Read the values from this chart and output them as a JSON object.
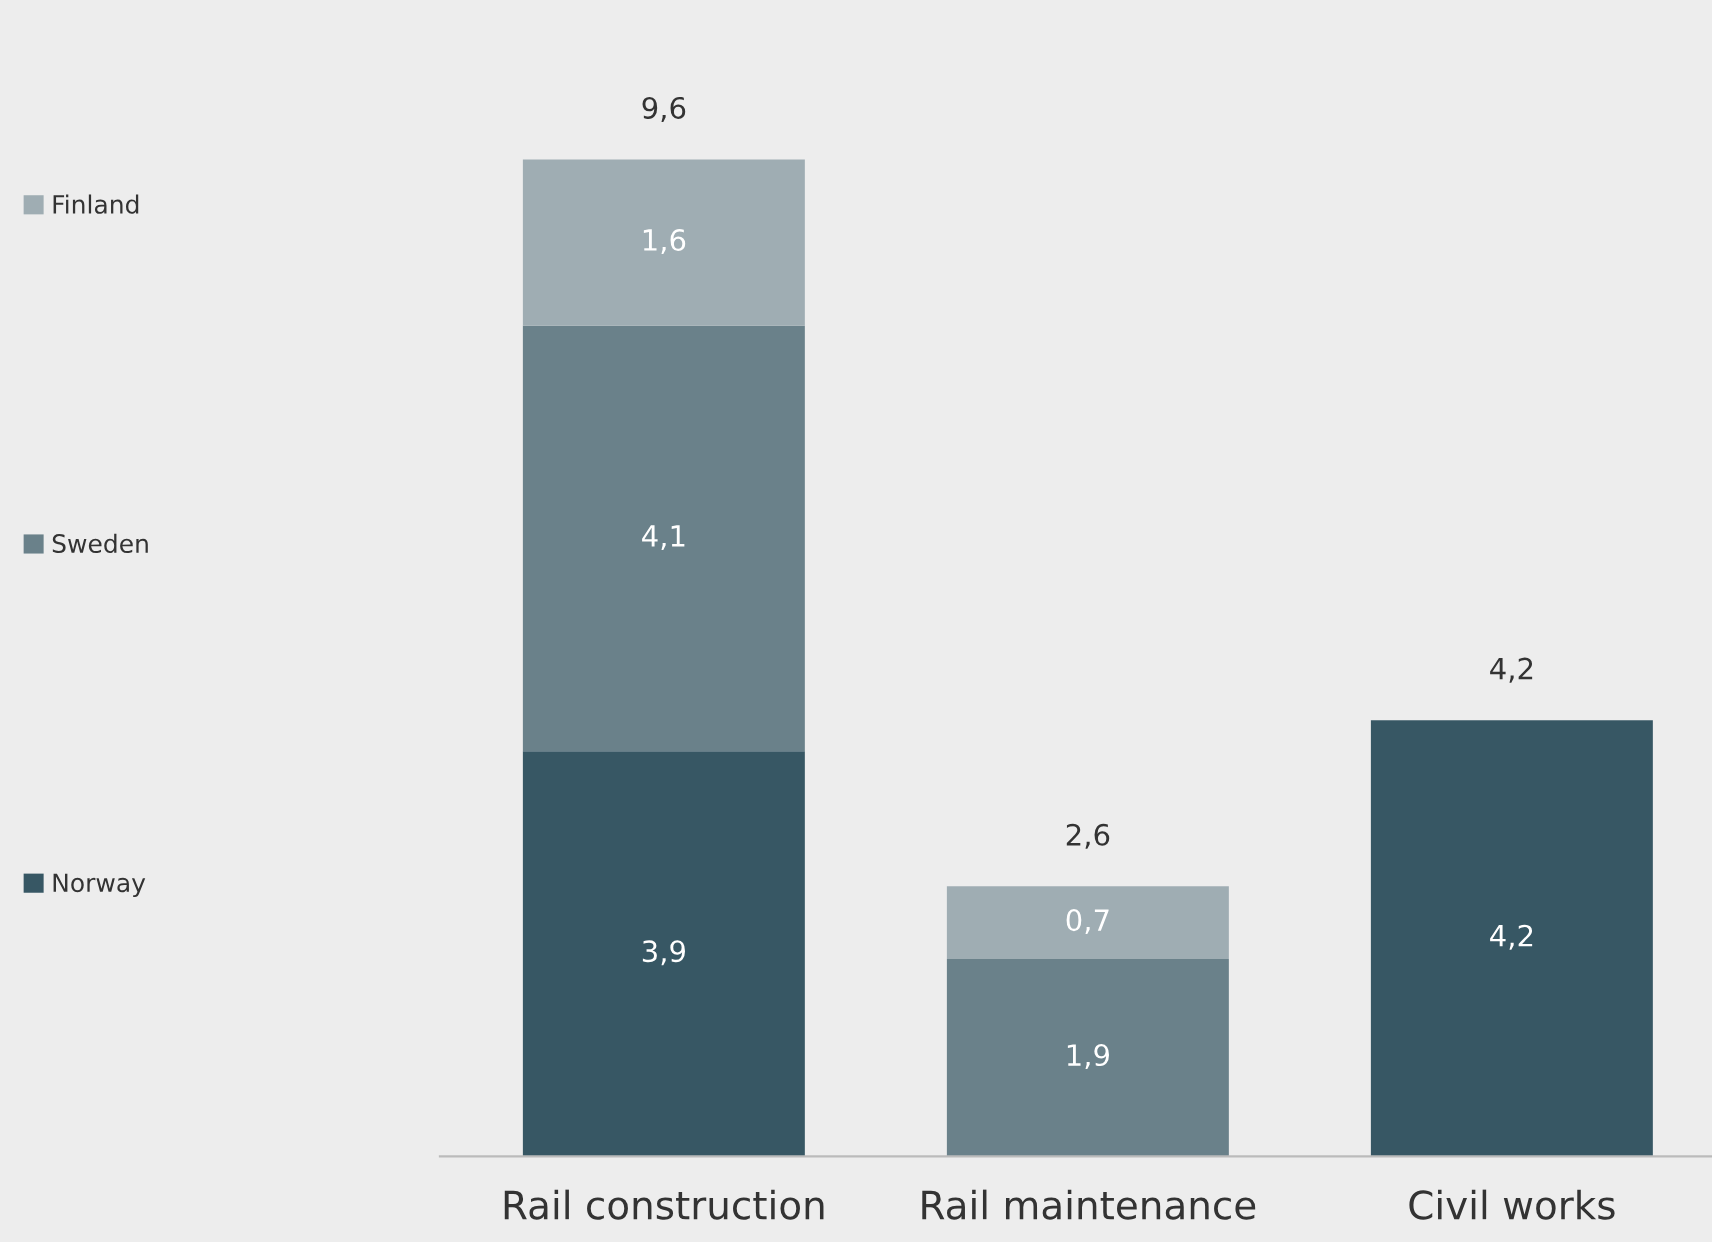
{
  "chart_data": {
    "type": "bar",
    "stacked": true,
    "categories": [
      "Rail construction",
      "Rail maintenance",
      "Civil works"
    ],
    "series": [
      {
        "name": "Norway",
        "color": "#375764",
        "values": [
          3.9,
          null,
          4.2
        ],
        "value_labels": [
          "3,9",
          null,
          "4,2"
        ]
      },
      {
        "name": "Sweden",
        "color": "#6a818a",
        "values": [
          4.1,
          1.9,
          null
        ],
        "value_labels": [
          "4,1",
          "1,9",
          null
        ]
      },
      {
        "name": "Finland",
        "color": "#9fadb3",
        "values": [
          1.6,
          0.7,
          null
        ],
        "value_labels": [
          "1,6",
          "0,7",
          null
        ]
      }
    ],
    "totals": [
      "9,6",
      "2,6",
      "4,2"
    ],
    "legend": "left",
    "grid": false
  }
}
